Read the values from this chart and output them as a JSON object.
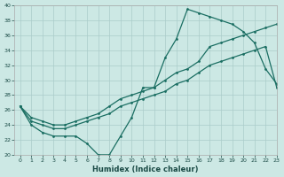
{
  "xlabel": "Humidex (Indice chaleur)",
  "xlim": [
    -0.5,
    23
  ],
  "ylim": [
    20,
    40
  ],
  "yticks": [
    20,
    22,
    24,
    26,
    28,
    30,
    32,
    34,
    36,
    38,
    40
  ],
  "xticks": [
    0,
    1,
    2,
    3,
    4,
    5,
    6,
    7,
    8,
    9,
    10,
    11,
    12,
    13,
    14,
    15,
    16,
    17,
    18,
    19,
    20,
    21,
    22,
    23
  ],
  "bg_color": "#cce8e4",
  "grid_color": "#aaccca",
  "line_color": "#1a6e62",
  "line1_y": [
    26.5,
    24,
    23,
    22.5,
    22.5,
    22.5,
    21.5,
    20,
    20,
    22.5,
    25,
    29,
    29,
    33,
    35.5,
    39.5,
    39,
    38.5,
    38,
    37.5,
    36.5,
    35,
    31.5,
    29.5
  ],
  "line2_y": [
    26.5,
    24.5,
    24.0,
    23.5,
    23.5,
    24.0,
    24.5,
    25.0,
    25.5,
    26.5,
    27.0,
    27.5,
    28.0,
    28.5,
    29.5,
    30.0,
    31.0,
    32.0,
    32.5,
    33.0,
    33.5,
    34.0,
    34.5,
    29.0
  ],
  "line3_y": [
    26.5,
    25.0,
    24.5,
    24.0,
    24.0,
    24.5,
    25.0,
    25.5,
    26.5,
    27.5,
    28.0,
    28.5,
    29.0,
    30.0,
    31.0,
    31.5,
    32.5,
    34.5,
    35.0,
    35.5,
    36.0,
    36.5,
    37.0,
    37.5
  ]
}
